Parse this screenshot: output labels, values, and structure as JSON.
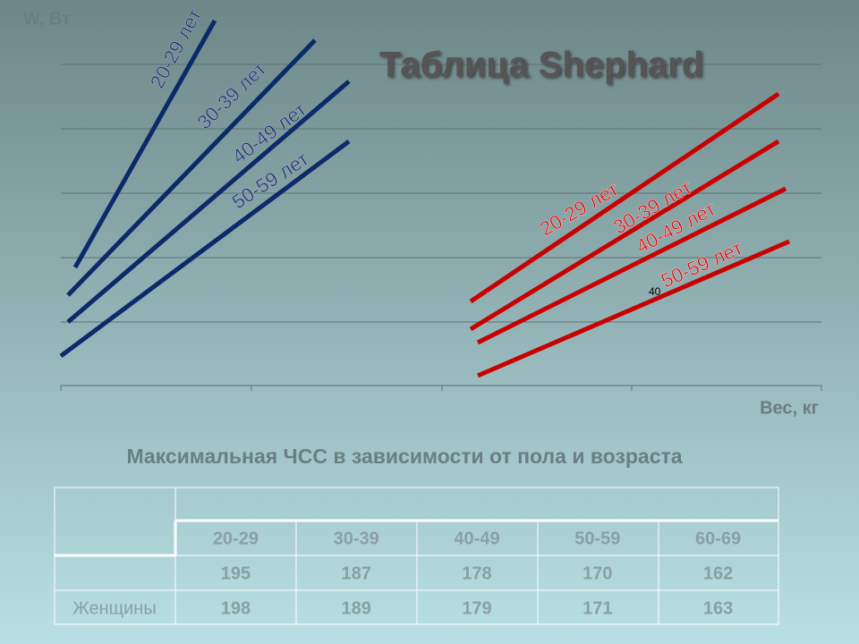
{
  "chart": {
    "title": "Таблица Shephard",
    "y_label": "W, Вт",
    "x_label": "Вес, кг",
    "men_lines": [
      "20-29 лет",
      "30-39 лет",
      "40-49 лет",
      "50-59 лет"
    ],
    "women_lines": [
      "20-29 лет",
      "30-39 лет",
      "40-49 лет",
      "50-59 лет"
    ],
    "annotation": "40"
  },
  "table": {
    "title": "Максимальная ЧСС в зависимости от пола и возраста",
    "header": [
      "20-29",
      "30-39",
      "40-49",
      "50-59",
      "60-69"
    ],
    "rows": [
      {
        "values": [
          195,
          187,
          178,
          170,
          162
        ]
      },
      {
        "label": "Женщины",
        "values": [
          198,
          189,
          179,
          171,
          163
        ]
      }
    ]
  }
}
